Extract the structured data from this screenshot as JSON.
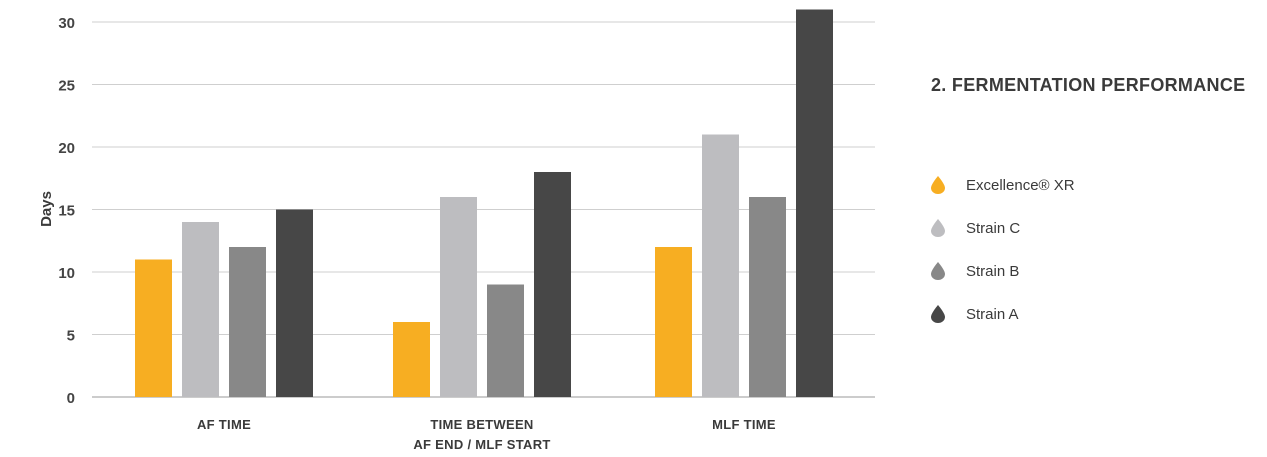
{
  "chart_data": {
    "type": "bar",
    "title": "2. FERMENTATION PERFORMANCE",
    "ylabel": "Days",
    "xlabel": "",
    "ylim": [
      0,
      31
    ],
    "yticks": [
      "0",
      "5",
      "10",
      "15",
      "20",
      "25",
      "30"
    ],
    "grid": true,
    "legend_position": "right",
    "categories": [
      [
        "AF TIME"
      ],
      [
        "TIME BETWEEN",
        "AF END / MLF START"
      ],
      [
        "MLF TIME"
      ]
    ],
    "series": [
      {
        "name": "Excellence® XR",
        "color": "#F7AE22",
        "values": [
          11,
          6,
          12
        ]
      },
      {
        "name": "Strain C",
        "color": "#BDBDC0",
        "values": [
          14,
          16,
          21
        ]
      },
      {
        "name": "Strain B",
        "color": "#888888",
        "values": [
          12,
          9,
          16
        ]
      },
      {
        "name": "Strain A",
        "color": "#474747",
        "values": [
          15,
          18,
          31
        ]
      }
    ]
  }
}
